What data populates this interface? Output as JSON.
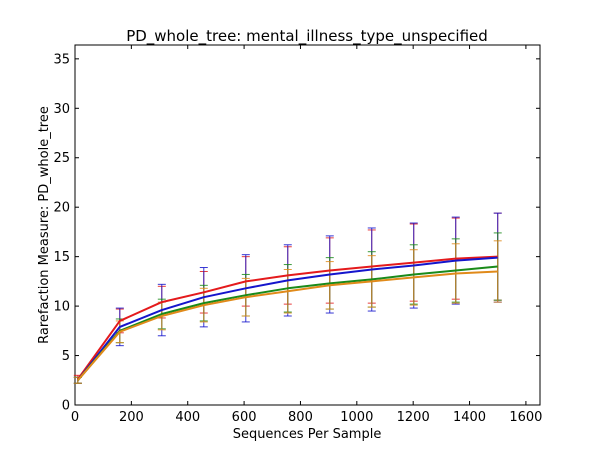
{
  "chart_data": {
    "type": "line",
    "title": "PD_whole_tree: mental_illness_type_unspecified",
    "xlabel": "Sequences Per Sample",
    "ylabel": "Rarefaction Measure: PD_whole_tree",
    "xlim": [
      0,
      1650
    ],
    "ylim": [
      0,
      36.4
    ],
    "xticks": [
      0,
      200,
      400,
      600,
      800,
      1000,
      1200,
      1400,
      1600
    ],
    "yticks": [
      0,
      5,
      10,
      15,
      20,
      25,
      30,
      35
    ],
    "grid": false,
    "x": [
      10,
      159,
      308,
      457,
      606,
      755,
      904,
      1053,
      1202,
      1351,
      1500
    ],
    "series": [
      {
        "color": "#e41a1c",
        "values": [
          2.6,
          8.5,
          10.4,
          11.4,
          12.5,
          13.1,
          13.6,
          14.0,
          14.4,
          14.8,
          15.0
        ],
        "errors": [
          0.4,
          1.2,
          1.6,
          2.1,
          2.5,
          2.9,
          3.3,
          3.7,
          3.9,
          4.1,
          4.4
        ]
      },
      {
        "color": "#1515cc",
        "values": [
          2.5,
          7.9,
          9.6,
          10.9,
          11.8,
          12.6,
          13.2,
          13.7,
          14.1,
          14.6,
          14.9
        ],
        "errors": [
          0.3,
          1.9,
          2.6,
          3.0,
          3.4,
          3.6,
          3.9,
          4.2,
          4.3,
          4.4,
          4.5
        ]
      },
      {
        "color": "#1a8a1a",
        "values": [
          2.5,
          7.5,
          9.2,
          10.3,
          11.1,
          11.8,
          12.3,
          12.7,
          13.2,
          13.6,
          14.0
        ],
        "errors": [
          0.3,
          1.2,
          1.5,
          1.8,
          2.1,
          2.4,
          2.6,
          2.8,
          3.0,
          3.2,
          3.4
        ]
      },
      {
        "color": "#e08a1a",
        "values": [
          2.5,
          7.4,
          9.0,
          10.1,
          10.9,
          11.5,
          12.1,
          12.5,
          12.9,
          13.3,
          13.5
        ],
        "errors": [
          0.3,
          1.1,
          1.4,
          1.7,
          1.9,
          2.2,
          2.4,
          2.6,
          2.8,
          3.0,
          3.1
        ]
      }
    ]
  }
}
